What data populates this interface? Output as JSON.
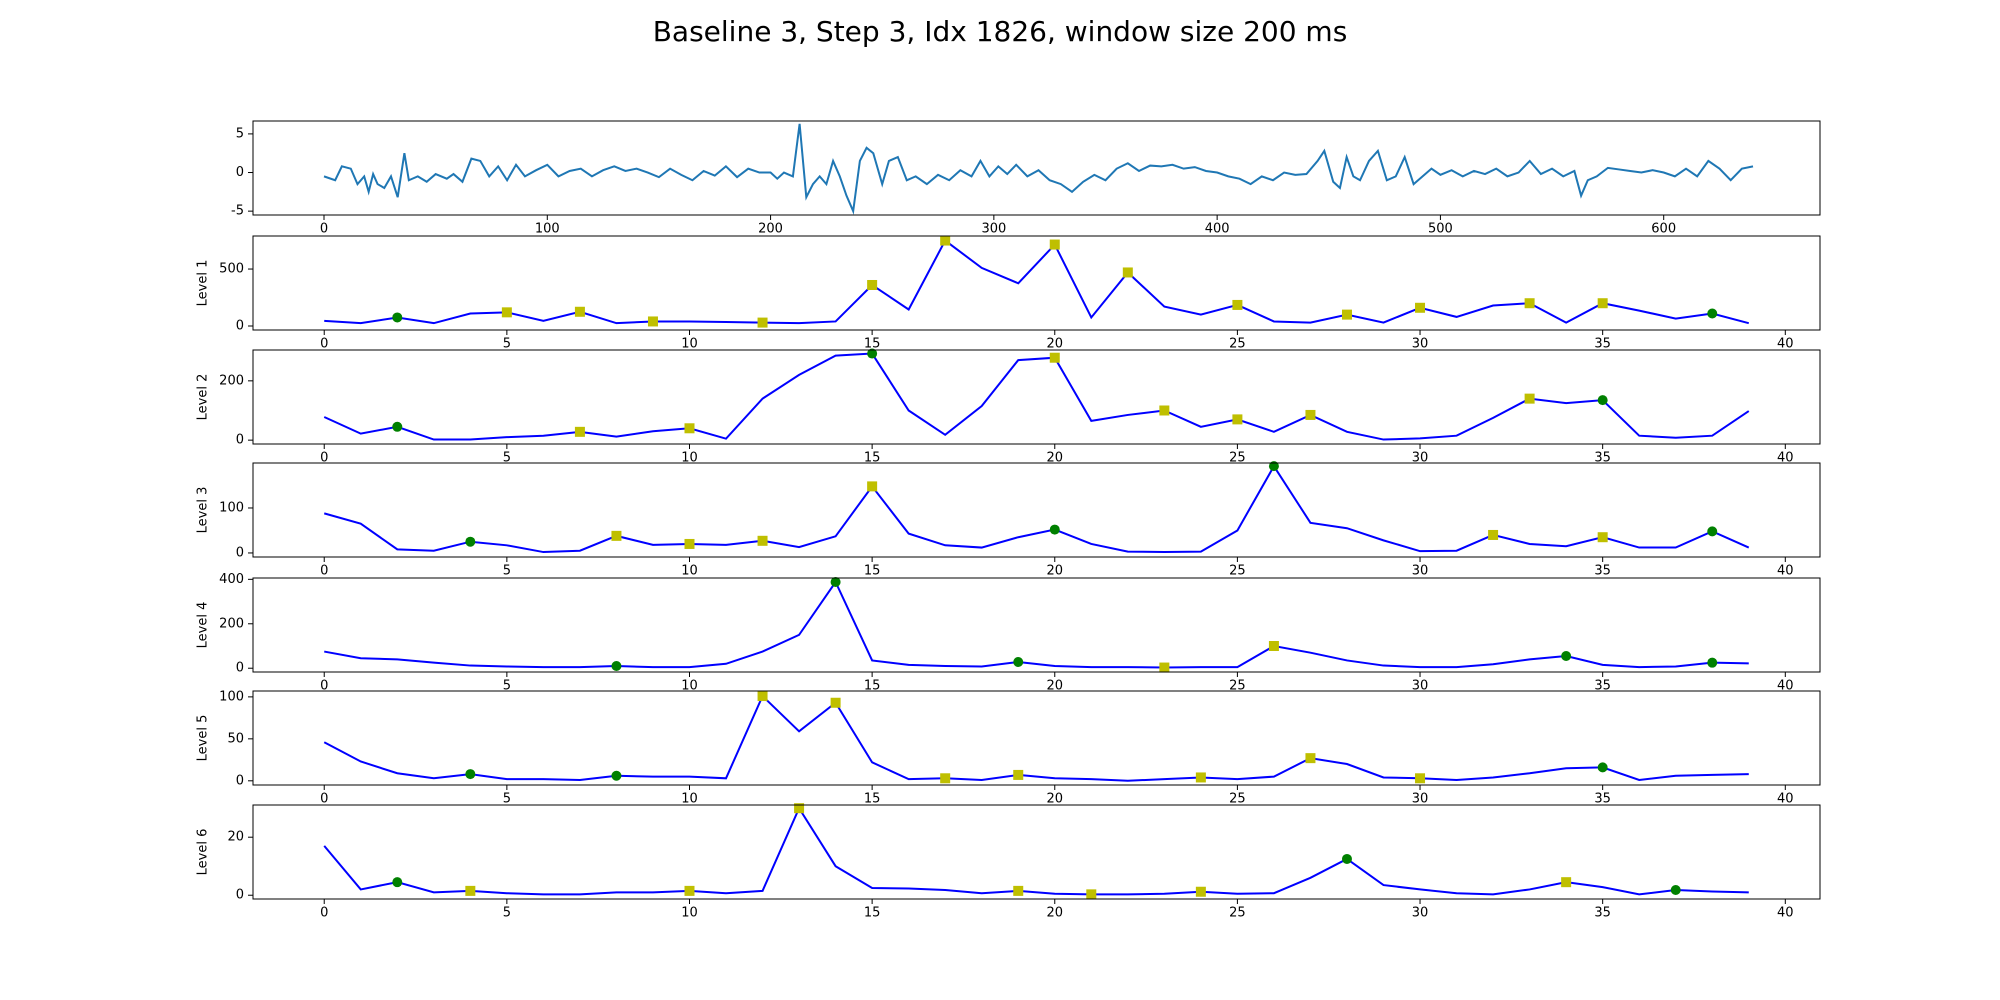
{
  "title": "Baseline 3, Step 3, Idx 1826, window size 200 ms",
  "chart_data": [
    {
      "type": "line",
      "x": [
        0,
        5,
        8,
        12,
        15,
        18,
        20,
        22,
        24,
        27,
        30,
        33,
        36,
        38,
        42,
        46,
        50,
        55,
        58,
        62,
        66,
        70,
        74,
        78,
        82,
        86,
        90,
        95,
        100,
        105,
        110,
        115,
        120,
        125,
        130,
        135,
        140,
        145,
        150,
        155,
        160,
        165,
        170,
        175,
        180,
        185,
        190,
        195,
        200,
        203,
        206,
        210,
        213,
        216,
        219,
        222,
        225,
        228,
        231,
        234,
        237,
        240,
        243,
        246,
        250,
        253,
        257,
        261,
        265,
        270,
        275,
        280,
        285,
        290,
        294,
        298,
        302,
        306,
        310,
        315,
        320,
        325,
        330,
        335,
        340,
        345,
        350,
        355,
        360,
        365,
        370,
        375,
        380,
        385,
        390,
        395,
        400,
        405,
        410,
        415,
        420,
        425,
        430,
        435,
        440,
        445,
        448,
        452,
        455,
        458,
        461,
        464,
        468,
        472,
        476,
        480,
        484,
        488,
        492,
        496,
        500,
        505,
        510,
        515,
        520,
        525,
        530,
        535,
        540,
        545,
        550,
        555,
        560,
        563,
        566,
        570,
        575,
        580,
        585,
        590,
        595,
        600,
        605,
        610,
        615,
        620,
        625,
        630,
        635,
        640
      ],
      "xlim": [
        -31.8,
        670
      ],
      "xticks": [
        0,
        100,
        200,
        300,
        400,
        500,
        600
      ],
      "ylim": [
        -5.5,
        6.67
      ],
      "yticks": [
        -5,
        0,
        5
      ],
      "series": [
        {
          "color": "#1f77b4",
          "values": [
            -0.5,
            -1.0,
            0.8,
            0.5,
            -1.5,
            -0.5,
            -2.5,
            -0.2,
            -1.5,
            -2.0,
            -0.5,
            -3.2,
            2.5,
            -1.0,
            -0.5,
            -1.2,
            -0.2,
            -0.8,
            -0.2,
            -1.2,
            1.8,
            1.5,
            -0.5,
            0.8,
            -1.0,
            1.0,
            -0.5,
            0.3,
            1.0,
            -0.5,
            0.2,
            0.5,
            -0.5,
            0.3,
            0.8,
            0.2,
            0.5,
            0.0,
            -0.6,
            0.5,
            -0.3,
            -1.0,
            0.2,
            -0.4,
            0.8,
            -0.6,
            0.5,
            0.0,
            0.0,
            -0.8,
            0.0,
            -0.5,
            6.3,
            -3.2,
            -1.5,
            -0.5,
            -1.5,
            1.5,
            -0.5,
            -3.0,
            -5.0,
            1.5,
            3.2,
            2.5,
            -1.5,
            1.5,
            2.0,
            -1.0,
            -0.5,
            -1.5,
            -0.3,
            -1.0,
            0.3,
            -0.5,
            1.5,
            -0.5,
            0.8,
            -0.2,
            1.0,
            -0.5,
            0.3,
            -1.0,
            -1.5,
            -2.5,
            -1.2,
            -0.3,
            -1.0,
            0.5,
            1.2,
            0.2,
            0.9,
            0.8,
            1.0,
            0.5,
            0.7,
            0.2,
            0.0,
            -0.5,
            -0.8,
            -1.5,
            -0.5,
            -1.0,
            0.0,
            -0.3,
            -0.2,
            1.5,
            2.8,
            -1.2,
            -2.0,
            2.0,
            -0.5,
            -1.0,
            1.5,
            2.8,
            -1.0,
            -0.5,
            2.0,
            -1.5,
            -0.5,
            0.5,
            -0.3,
            0.3,
            -0.5,
            0.2,
            -0.2,
            0.5,
            -0.5,
            0.0,
            1.5,
            -0.2,
            0.5,
            -0.5,
            0.2,
            -3.0,
            -1.0,
            -0.5,
            0.6,
            0.4,
            0.2,
            0.0,
            0.3,
            0.0,
            -0.5,
            0.5,
            -0.5,
            1.5,
            0.5,
            -1.0,
            0.5,
            0.8
          ]
        }
      ]
    },
    {
      "type": "line",
      "ylabel": "Level 1",
      "x": [
        0,
        1,
        2,
        3,
        4,
        5,
        6,
        7,
        8,
        9,
        10,
        11,
        12,
        13,
        14,
        15,
        16,
        17,
        18,
        19,
        20,
        21,
        22,
        23,
        24,
        25,
        26,
        27,
        28,
        29,
        30,
        31,
        32,
        33,
        34,
        35,
        36,
        37,
        38,
        39
      ],
      "xlim": [
        -1.95,
        40.95
      ],
      "xticks": [
        0,
        5,
        10,
        15,
        20,
        25,
        30,
        35,
        40
      ],
      "ylim": [
        -35,
        790
      ],
      "yticks": [
        0,
        500
      ],
      "series": [
        {
          "color": "#0000ff",
          "values": [
            45,
            25,
            75,
            25,
            110,
            120,
            45,
            125,
            25,
            40,
            40,
            35,
            30,
            25,
            40,
            360,
            145,
            750,
            510,
            375,
            715,
            75,
            470,
            170,
            100,
            185,
            40,
            30,
            100,
            30,
            160,
            80,
            180,
            200,
            30,
            200,
            135,
            65,
            110,
            25
          ]
        },
        {
          "color": "#008000",
          "marker": "circle",
          "x": [
            2,
            38
          ],
          "values": [
            75,
            110
          ]
        },
        {
          "color": "#bfbf00",
          "marker": "square",
          "x": [
            5,
            7,
            9,
            12,
            15,
            17,
            20,
            22,
            25,
            28,
            30,
            33,
            35
          ],
          "values": [
            120,
            125,
            40,
            30,
            360,
            750,
            715,
            470,
            185,
            100,
            160,
            200,
            200
          ]
        }
      ]
    },
    {
      "type": "line",
      "ylabel": "Level 2",
      "x": [
        0,
        1,
        2,
        3,
        4,
        5,
        6,
        7,
        8,
        9,
        10,
        11,
        12,
        13,
        14,
        15,
        16,
        17,
        18,
        19,
        20,
        21,
        22,
        23,
        24,
        25,
        26,
        27,
        28,
        29,
        30,
        31,
        32,
        33,
        34,
        35,
        36,
        37,
        38,
        39
      ],
      "xlim": [
        -1.95,
        40.95
      ],
      "xticks": [
        0,
        5,
        10,
        15,
        20,
        25,
        30,
        35,
        40
      ],
      "ylim": [
        -13,
        304
      ],
      "yticks": [
        0,
        200
      ],
      "series": [
        {
          "color": "#0000ff",
          "values": [
            78,
            22,
            45,
            2,
            2,
            10,
            15,
            28,
            12,
            30,
            40,
            5,
            140,
            220,
            285,
            292,
            100,
            18,
            115,
            270,
            278,
            65,
            85,
            100,
            45,
            70,
            28,
            85,
            28,
            2,
            6,
            15,
            75,
            140,
            125,
            135,
            15,
            8,
            15,
            98
          ]
        },
        {
          "color": "#008000",
          "marker": "circle",
          "x": [
            2,
            15,
            35
          ],
          "values": [
            45,
            292,
            135
          ]
        },
        {
          "color": "#bfbf00",
          "marker": "square",
          "x": [
            7,
            10,
            20,
            23,
            25,
            27,
            33
          ],
          "values": [
            28,
            40,
            278,
            100,
            70,
            85,
            140
          ]
        }
      ]
    },
    {
      "type": "line",
      "ylabel": "Level 3",
      "x": [
        0,
        1,
        2,
        3,
        4,
        5,
        6,
        7,
        8,
        9,
        10,
        11,
        12,
        13,
        14,
        15,
        16,
        17,
        18,
        19,
        20,
        21,
        22,
        23,
        24,
        25,
        26,
        27,
        28,
        29,
        30,
        31,
        32,
        33,
        34,
        35,
        36,
        37,
        38,
        39
      ],
      "xlim": [
        -1.95,
        40.95
      ],
      "xticks": [
        0,
        5,
        10,
        15,
        20,
        25,
        30,
        35,
        40
      ],
      "ylim": [
        -9,
        200
      ],
      "yticks": [
        0,
        100
      ],
      "series": [
        {
          "color": "#0000ff",
          "values": [
            88,
            65,
            8,
            5,
            25,
            17,
            2,
            5,
            38,
            18,
            20,
            18,
            27,
            13,
            37,
            148,
            43,
            17,
            12,
            35,
            52,
            20,
            3,
            2,
            3,
            50,
            193,
            67,
            55,
            28,
            4,
            5,
            40,
            20,
            15,
            35,
            12,
            12,
            48,
            12
          ]
        },
        {
          "color": "#008000",
          "marker": "circle",
          "x": [
            4,
            20,
            26,
            38
          ],
          "values": [
            25,
            52,
            193,
            48
          ]
        },
        {
          "color": "#bfbf00",
          "marker": "square",
          "x": [
            8,
            10,
            12,
            15,
            32,
            35
          ],
          "values": [
            38,
            20,
            27,
            148,
            40,
            35
          ]
        }
      ]
    },
    {
      "type": "line",
      "ylabel": "Level 4",
      "x": [
        0,
        1,
        2,
        3,
        4,
        5,
        6,
        7,
        8,
        9,
        10,
        11,
        12,
        13,
        14,
        15,
        16,
        17,
        18,
        19,
        20,
        21,
        22,
        23,
        24,
        25,
        26,
        27,
        28,
        29,
        30,
        31,
        32,
        33,
        34,
        35,
        36,
        37,
        38,
        39
      ],
      "xlim": [
        -1.95,
        40.95
      ],
      "xticks": [
        0,
        5,
        10,
        15,
        20,
        25,
        30,
        35,
        40
      ],
      "ylim": [
        -17,
        406
      ],
      "yticks": [
        0,
        200,
        400
      ],
      "series": [
        {
          "color": "#0000ff",
          "values": [
            75,
            45,
            40,
            25,
            12,
            8,
            5,
            5,
            10,
            5,
            5,
            20,
            75,
            150,
            388,
            35,
            15,
            10,
            8,
            28,
            10,
            5,
            5,
            3,
            5,
            5,
            100,
            70,
            35,
            12,
            5,
            5,
            18,
            40,
            55,
            15,
            5,
            8,
            25,
            22
          ]
        },
        {
          "color": "#008000",
          "marker": "circle",
          "x": [
            8,
            14,
            19,
            34,
            38
          ],
          "values": [
            10,
            388,
            28,
            55,
            25
          ]
        },
        {
          "color": "#bfbf00",
          "marker": "square",
          "x": [
            23,
            26
          ],
          "values": [
            3,
            100
          ]
        }
      ]
    },
    {
      "type": "line",
      "ylabel": "Level 5",
      "x": [
        0,
        1,
        2,
        3,
        4,
        5,
        6,
        7,
        8,
        9,
        10,
        11,
        12,
        13,
        14,
        15,
        16,
        17,
        18,
        19,
        20,
        21,
        22,
        23,
        24,
        25,
        26,
        27,
        28,
        29,
        30,
        31,
        32,
        33,
        34,
        35,
        36,
        37,
        38,
        39
      ],
      "xlim": [
        -1.95,
        40.95
      ],
      "xticks": [
        0,
        5,
        10,
        15,
        20,
        25,
        30,
        35,
        40
      ],
      "ylim": [
        -5,
        107
      ],
      "yticks": [
        0,
        50,
        100
      ],
      "series": [
        {
          "color": "#0000ff",
          "values": [
            46,
            23,
            9,
            3,
            8,
            2,
            2,
            1,
            6,
            5,
            5,
            3,
            101,
            59,
            93,
            22,
            2,
            3,
            1,
            7,
            3,
            2,
            0,
            2,
            4,
            2,
            5,
            27,
            20,
            4,
            3,
            1,
            4,
            9,
            15,
            16,
            1,
            6,
            7,
            8
          ]
        },
        {
          "color": "#008000",
          "marker": "circle",
          "x": [
            4,
            8,
            35
          ],
          "values": [
            8,
            6,
            16
          ]
        },
        {
          "color": "#bfbf00",
          "marker": "square",
          "x": [
            12,
            14,
            17,
            19,
            24,
            27,
            30
          ],
          "values": [
            101,
            93,
            3,
            7,
            4,
            27,
            3
          ]
        }
      ]
    },
    {
      "type": "line",
      "ylabel": "Level 6",
      "x": [
        0,
        1,
        2,
        3,
        4,
        5,
        6,
        7,
        8,
        9,
        10,
        11,
        12,
        13,
        14,
        15,
        16,
        17,
        18,
        19,
        20,
        21,
        22,
        23,
        24,
        25,
        26,
        27,
        28,
        29,
        30,
        31,
        32,
        33,
        34,
        35,
        36,
        37,
        38,
        39
      ],
      "xlim": [
        -1.95,
        40.95
      ],
      "xticks": [
        0,
        5,
        10,
        15,
        20,
        25,
        30,
        35,
        40
      ],
      "ylim": [
        -1.3,
        31.1
      ],
      "yticks": [
        0,
        20
      ],
      "series": [
        {
          "color": "#0000ff",
          "values": [
            17,
            2,
            4.5,
            1,
            1.5,
            0.7,
            0.3,
            0.3,
            1,
            1,
            1.5,
            0.7,
            1.5,
            30,
            10,
            2.5,
            2.3,
            1.8,
            0.7,
            1.5,
            0.5,
            0.3,
            0.3,
            0.5,
            1.2,
            0.5,
            0.7,
            6,
            12.5,
            3.5,
            2,
            0.7,
            0.3,
            2,
            4.5,
            2.8,
            0.3,
            1.8,
            1.3,
            1
          ]
        },
        {
          "color": "#008000",
          "marker": "circle",
          "x": [
            2,
            28,
            37
          ],
          "values": [
            4.5,
            12.5,
            1.8
          ]
        },
        {
          "color": "#bfbf00",
          "marker": "square",
          "x": [
            4,
            10,
            13,
            19,
            21,
            24,
            34
          ],
          "values": [
            1.5,
            1.5,
            30,
            1.5,
            0.3,
            1.2,
            4.5
          ]
        }
      ]
    }
  ]
}
